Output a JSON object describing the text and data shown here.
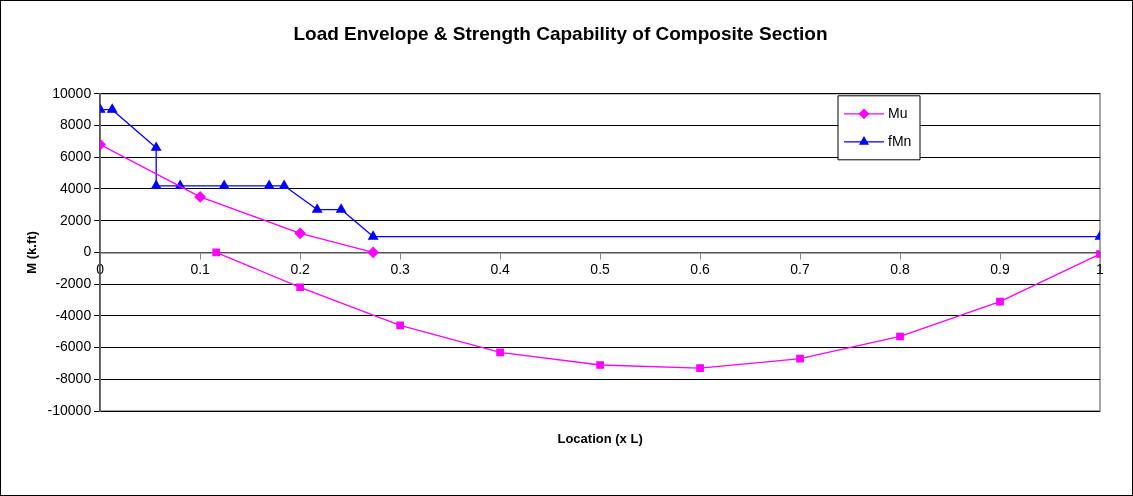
{
  "chart_data": {
    "type": "line",
    "title": "Load Envelope & Strength Capability of Composite Section",
    "xlabel": "Location (x L)",
    "ylabel": "M (k.ft)",
    "xlim": [
      0,
      1
    ],
    "xticks": [
      0,
      0.1,
      0.2,
      0.3,
      0.4,
      0.5,
      0.6,
      0.7,
      0.8,
      0.9,
      1
    ],
    "ylim": [
      -10000,
      10000
    ],
    "yticks": [
      -10000,
      -8000,
      -6000,
      -4000,
      -2000,
      0,
      2000,
      4000,
      6000,
      8000,
      10000
    ],
    "grid": "y",
    "legend": "top right",
    "series": [
      {
        "name": "Mu",
        "color": "#ff00ff",
        "marker": "diamond",
        "x": [
          0,
          0.1,
          0.2,
          0.273
        ],
        "values": [
          6800,
          3500,
          1200,
          0
        ]
      },
      {
        "name": "fMn",
        "color": "#0000ff",
        "marker": "triangle",
        "x": [
          0,
          0.012,
          0.056,
          0.056,
          0.08,
          0.124,
          0.169,
          0.184,
          0.217,
          0.241,
          0.273,
          1
        ],
        "values": [
          9000,
          9000,
          6600,
          4200,
          4200,
          4200,
          4200,
          4200,
          2700,
          2700,
          1000,
          1000
        ]
      },
      {
        "color": "#ff00ff",
        "marker": "square",
        "x": [
          0.116,
          0.2,
          0.3,
          0.4,
          0.5,
          0.6,
          0.7,
          0.8,
          0.9,
          1
        ],
        "values": [
          0,
          -2200,
          -4600,
          -6300,
          -7100,
          -7300,
          -6700,
          -5300,
          -3100,
          -100
        ]
      }
    ]
  }
}
